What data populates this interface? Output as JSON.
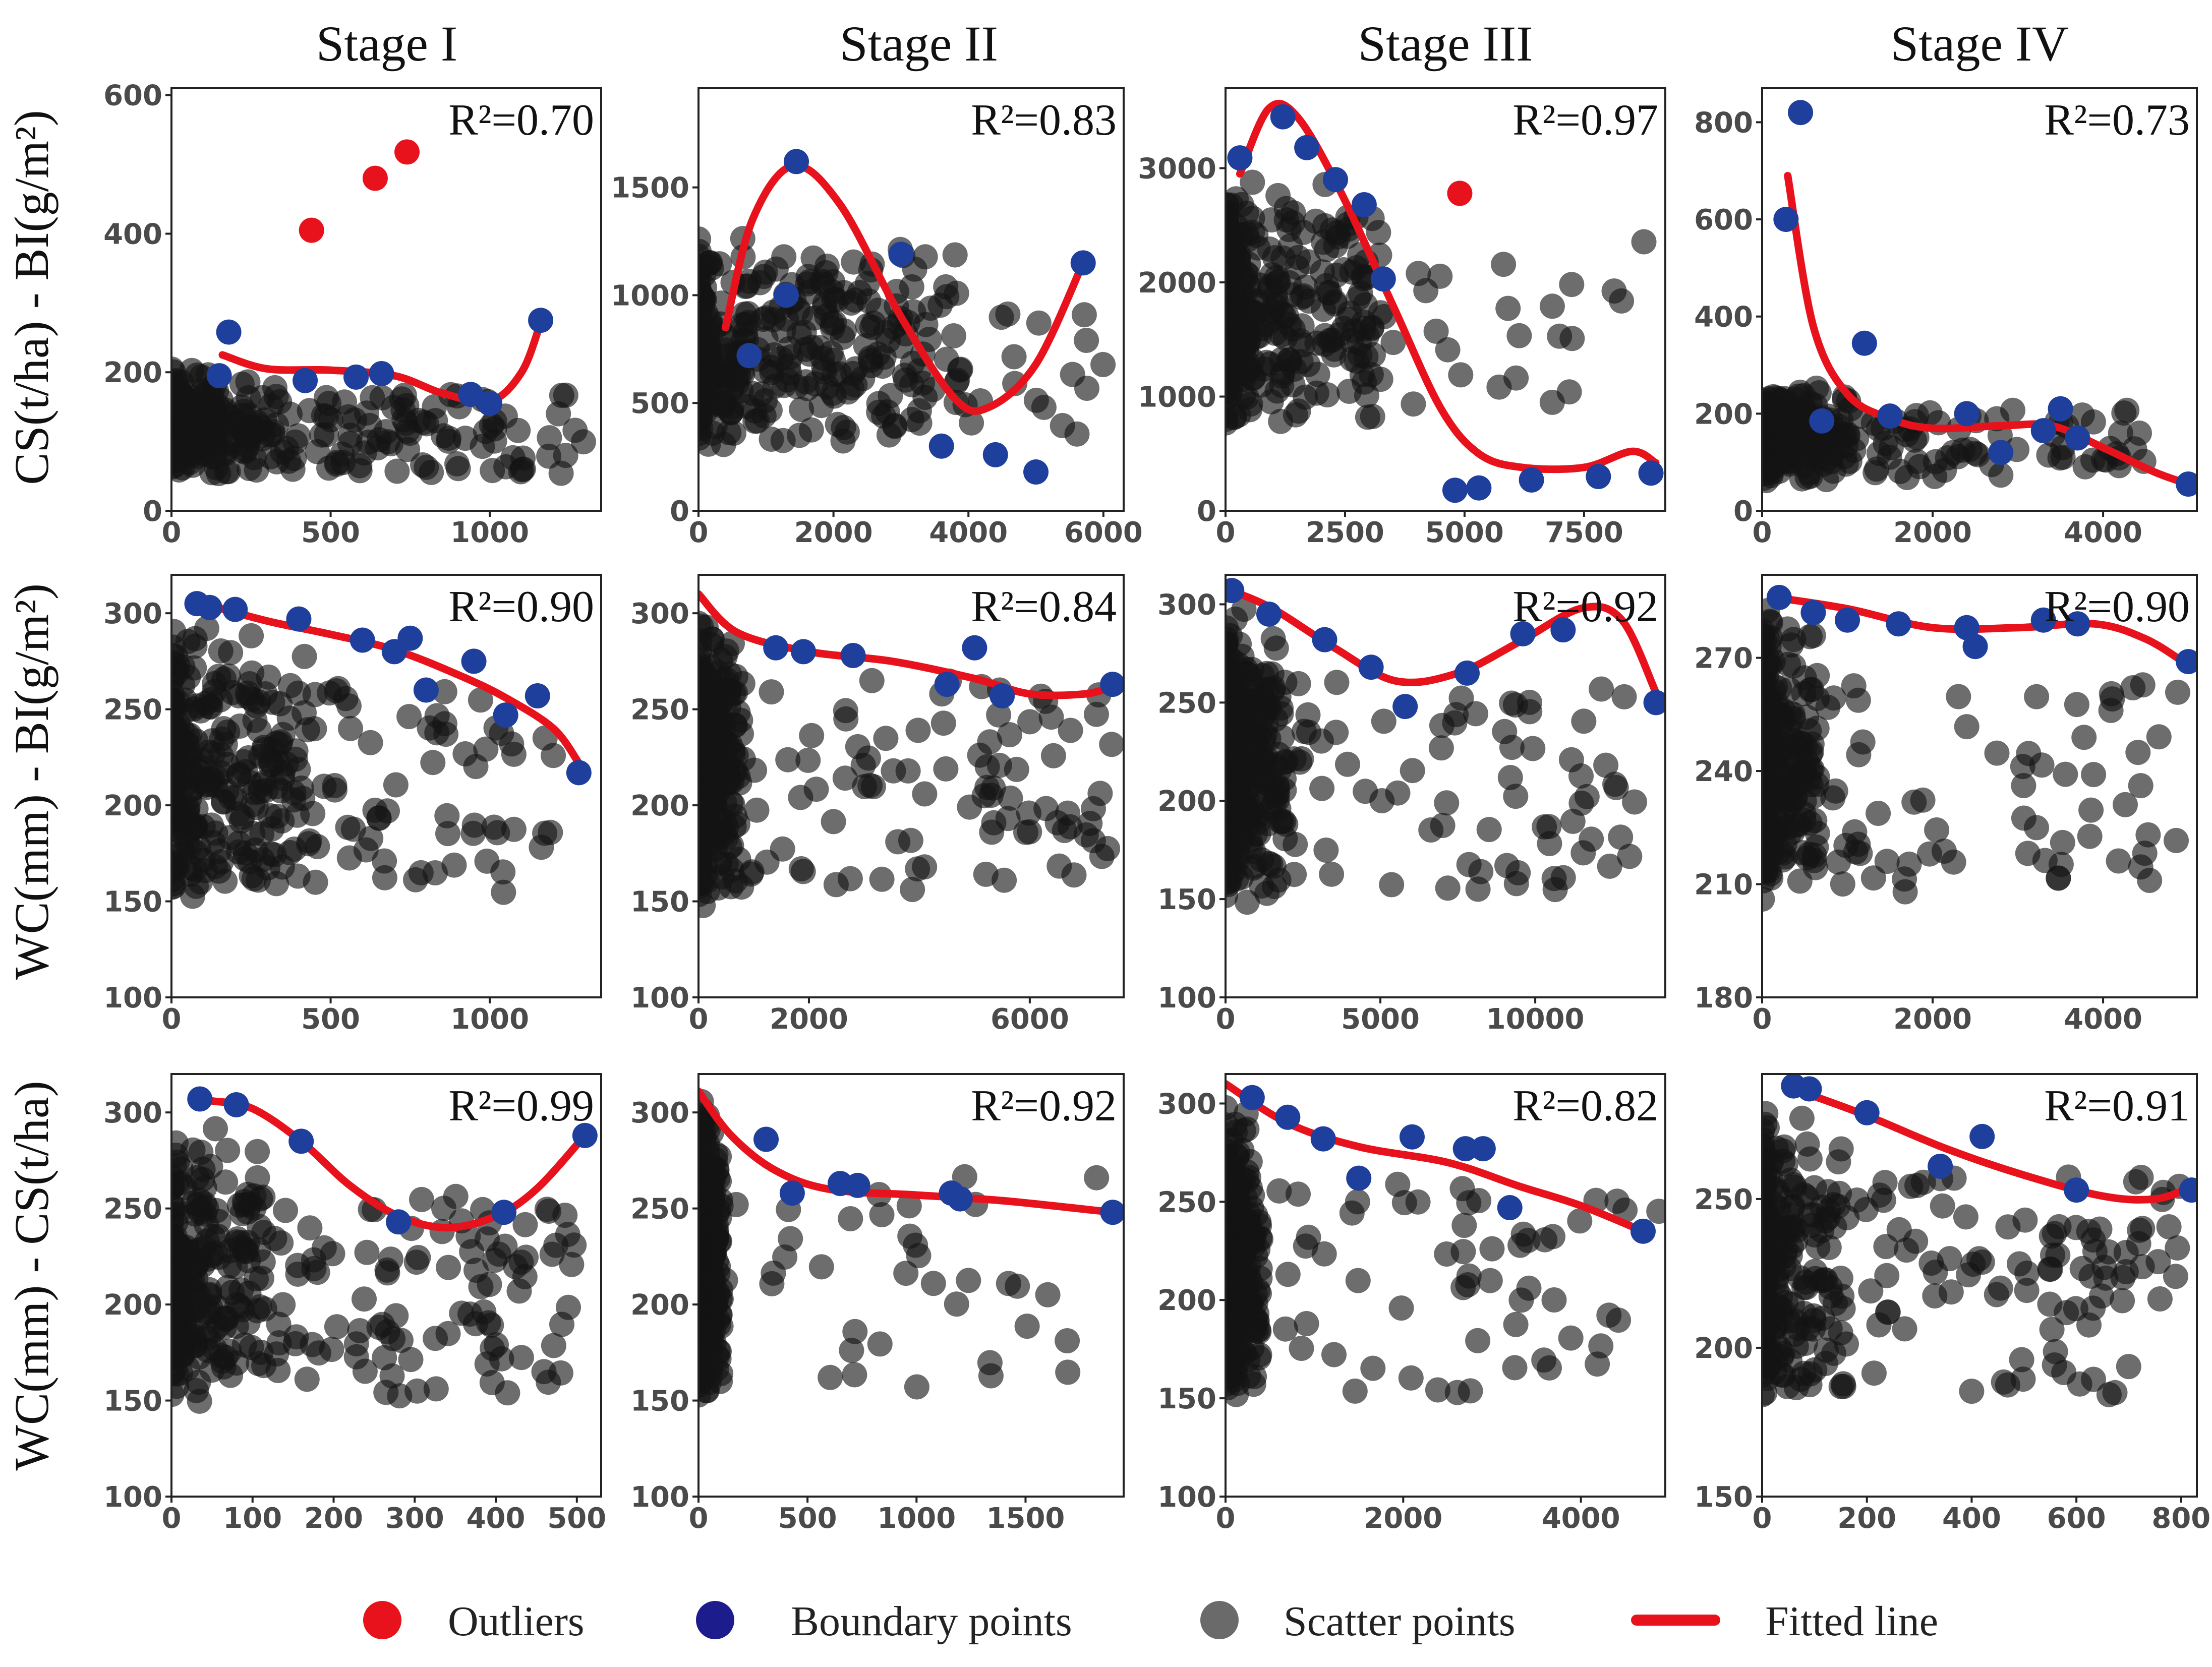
{
  "colors": {
    "outlier": "#e8121c",
    "boundary": "#1f3f9c",
    "scatter": "#141414",
    "fitted": "#e8121c",
    "legend_scatter": "#6a6a6a",
    "legend_boundary": "#1c1c8c"
  },
  "figure": {
    "columns": [
      "Stage I",
      "Stage II",
      "Stage III",
      "Stage IV"
    ],
    "row_labels": [
      "CS(t/ha) - BI(g/m²)",
      "WC(mm)  - BI(g/m²)",
      "WC(mm) - CS(t/ha)"
    ]
  },
  "legend": {
    "outliers": "Outliers",
    "boundary": "Boundary points",
    "scatter": "Scatter points",
    "fitted": "Fitted line"
  },
  "chart_data": [
    {
      "type": "scatter",
      "row": 0,
      "col": 0,
      "r2": "R²=0.70",
      "xlim": [
        0,
        1350
      ],
      "ylim": [
        0,
        610
      ],
      "xticks": [
        0,
        500,
        1000
      ],
      "yticks": [
        0,
        200,
        400,
        600
      ],
      "outliers": [
        [
          440,
          405
        ],
        [
          640,
          480
        ],
        [
          740,
          518
        ]
      ],
      "boundary": [
        [
          150,
          195
        ],
        [
          180,
          258
        ],
        [
          420,
          188
        ],
        [
          580,
          193
        ],
        [
          660,
          198
        ],
        [
          940,
          168
        ],
        [
          1000,
          155
        ],
        [
          1160,
          275
        ]
      ],
      "fit": [
        [
          160,
          225
        ],
        [
          300,
          205
        ],
        [
          500,
          203
        ],
        [
          700,
          195
        ],
        [
          850,
          170
        ],
        [
          1000,
          158
        ],
        [
          1100,
          200
        ],
        [
          1160,
          272
        ]
      ],
      "cloud": {
        "seed": 11,
        "n": 300,
        "x": [
          0,
          1300
        ],
        "y": [
          0,
          210
        ],
        "dense_x": 260,
        "dense_y": 170,
        "skew": 0.6
      }
    },
    {
      "type": "scatter",
      "row": 0,
      "col": 1,
      "r2": "R²=0.83",
      "xlim": [
        0,
        6300
      ],
      "ylim": [
        0,
        1960
      ],
      "xticks": [
        0,
        2000,
        4000,
        6000
      ],
      "yticks": [
        0,
        500,
        1000,
        1500
      ],
      "outliers": [],
      "boundary": [
        [
          750,
          720
        ],
        [
          1300,
          1000
        ],
        [
          1450,
          1620
        ],
        [
          3000,
          1190
        ],
        [
          3600,
          300
        ],
        [
          4400,
          260
        ],
        [
          5000,
          180
        ],
        [
          5700,
          1150
        ]
      ],
      "fit": [
        [
          400,
          850
        ],
        [
          800,
          1350
        ],
        [
          1400,
          1600
        ],
        [
          2100,
          1420
        ],
        [
          3000,
          900
        ],
        [
          3800,
          520
        ],
        [
          4300,
          480
        ],
        [
          5000,
          680
        ],
        [
          5700,
          1150
        ]
      ],
      "cloud": {
        "seed": 23,
        "n": 360,
        "x": [
          0,
          6100
        ],
        "y": [
          0,
          1300
        ],
        "dense_x": 3000,
        "dense_y": 500,
        "skew": 0.8
      }
    },
    {
      "type": "scatter",
      "row": 0,
      "col": 2,
      "r2": "R²=0.97",
      "xlim": [
        0,
        9200
      ],
      "ylim": [
        0,
        3700
      ],
      "xticks": [
        0,
        2500,
        5000,
        7500
      ],
      "yticks": [
        0,
        1000,
        2000,
        3000
      ],
      "outliers": [
        [
          4900,
          2780
        ]
      ],
      "boundary": [
        [
          300,
          3090
        ],
        [
          1200,
          3450
        ],
        [
          1700,
          3180
        ],
        [
          2300,
          2900
        ],
        [
          2900,
          2680
        ],
        [
          3300,
          2030
        ],
        [
          4800,
          180
        ],
        [
          5300,
          200
        ],
        [
          6400,
          270
        ],
        [
          7800,
          300
        ],
        [
          8900,
          330
        ]
      ],
      "fit": [
        [
          300,
          2950
        ],
        [
          900,
          3520
        ],
        [
          1500,
          3450
        ],
        [
          2400,
          2800
        ],
        [
          3500,
          1800
        ],
        [
          4500,
          900
        ],
        [
          5300,
          500
        ],
        [
          6200,
          380
        ],
        [
          7500,
          380
        ],
        [
          8500,
          520
        ],
        [
          9000,
          420
        ]
      ],
      "cloud": {
        "seed": 37,
        "n": 380,
        "x": [
          0,
          8900
        ],
        "y": [
          0,
          3000
        ],
        "dense_x": 2500,
        "dense_y": 1600,
        "skew": 0.9
      }
    },
    {
      "type": "scatter",
      "row": 0,
      "col": 3,
      "r2": "R²=0.73",
      "xlim": [
        0,
        5100
      ],
      "ylim": [
        0,
        870
      ],
      "xticks": [
        0,
        2000,
        4000
      ],
      "yticks": [
        0,
        200,
        400,
        600,
        800
      ],
      "outliers": [],
      "boundary": [
        [
          280,
          600
        ],
        [
          450,
          820
        ],
        [
          700,
          185
        ],
        [
          1200,
          345
        ],
        [
          1500,
          195
        ],
        [
          2400,
          200
        ],
        [
          2800,
          120
        ],
        [
          3300,
          165
        ],
        [
          3500,
          210
        ],
        [
          3700,
          150
        ],
        [
          5000,
          55
        ]
      ],
      "fit": [
        [
          300,
          690
        ],
        [
          600,
          380
        ],
        [
          1000,
          240
        ],
        [
          1500,
          190
        ],
        [
          2000,
          170
        ],
        [
          2800,
          175
        ],
        [
          3400,
          175
        ],
        [
          4000,
          130
        ],
        [
          4600,
          80
        ],
        [
          5000,
          55
        ]
      ],
      "cloud": {
        "seed": 51,
        "n": 300,
        "x": [
          0,
          4500
        ],
        "y": [
          0,
          260
        ],
        "dense_x": 800,
        "dense_y": 200,
        "skew": 0.7
      }
    },
    {
      "type": "scatter",
      "row": 1,
      "col": 0,
      "r2": "R²=0.90",
      "xlim": [
        0,
        1350
      ],
      "ylim": [
        100,
        320
      ],
      "xticks": [
        0,
        500,
        1000
      ],
      "yticks": [
        100,
        150,
        200,
        250,
        300
      ],
      "outliers": [],
      "boundary": [
        [
          80,
          305
        ],
        [
          120,
          303
        ],
        [
          200,
          302
        ],
        [
          400,
          297
        ],
        [
          600,
          286
        ],
        [
          700,
          280
        ],
        [
          750,
          287
        ],
        [
          800,
          260
        ],
        [
          950,
          275
        ],
        [
          1050,
          247
        ],
        [
          1150,
          257
        ],
        [
          1280,
          217
        ]
      ],
      "fit": [
        [
          100,
          305
        ],
        [
          300,
          296
        ],
        [
          500,
          289
        ],
        [
          700,
          281
        ],
        [
          900,
          268
        ],
        [
          1050,
          256
        ],
        [
          1200,
          240
        ],
        [
          1280,
          222
        ]
      ],
      "cloud": {
        "seed": 61,
        "n": 340,
        "x": [
          0,
          1250
        ],
        "y": [
          105,
          300
        ],
        "dense_x": 330,
        "dense_y": 250,
        "skew": 0.75
      }
    },
    {
      "type": "scatter",
      "row": 1,
      "col": 1,
      "r2": "R²=0.84",
      "xlim": [
        0,
        7700
      ],
      "ylim": [
        100,
        320
      ],
      "xticks": [
        0,
        2000,
        6000
      ],
      "yticks": [
        100,
        150,
        200,
        250,
        300
      ],
      "outliers": [],
      "boundary": [
        [
          1400,
          282
        ],
        [
          1900,
          280
        ],
        [
          2800,
          278
        ],
        [
          4500,
          263
        ],
        [
          5000,
          282
        ],
        [
          5500,
          257
        ],
        [
          7500,
          263
        ]
      ],
      "fit": [
        [
          0,
          310
        ],
        [
          700,
          290
        ],
        [
          2000,
          280
        ],
        [
          3500,
          275
        ],
        [
          5000,
          266
        ],
        [
          6000,
          258
        ],
        [
          7000,
          258
        ],
        [
          7500,
          262
        ]
      ],
      "cloud": {
        "seed": 71,
        "n": 420,
        "x": [
          0,
          7500
        ],
        "y": [
          105,
          305
        ],
        "dense_x": 600,
        "dense_y": 230,
        "skew": 0.8
      }
    },
    {
      "type": "scatter",
      "row": 1,
      "col": 2,
      "r2": "R²=0.92",
      "xlim": [
        0,
        14200
      ],
      "ylim": [
        100,
        315
      ],
      "xticks": [
        0,
        5000,
        10000
      ],
      "yticks": [
        100,
        150,
        200,
        250,
        300
      ],
      "outliers": [],
      "boundary": [
        [
          200,
          307
        ],
        [
          1400,
          295
        ],
        [
          3200,
          282
        ],
        [
          4700,
          268
        ],
        [
          5800,
          248
        ],
        [
          7800,
          265
        ],
        [
          9600,
          285
        ],
        [
          10900,
          287
        ],
        [
          13900,
          250
        ]
      ],
      "fit": [
        [
          0,
          308
        ],
        [
          1500,
          298
        ],
        [
          3500,
          278
        ],
        [
          5500,
          261
        ],
        [
          7500,
          265
        ],
        [
          9500,
          281
        ],
        [
          11500,
          298
        ],
        [
          12800,
          292
        ],
        [
          13900,
          255
        ]
      ],
      "cloud": {
        "seed": 83,
        "n": 420,
        "x": [
          0,
          13500
        ],
        "y": [
          105,
          300
        ],
        "dense_x": 1500,
        "dense_y": 240,
        "skew": 0.8
      }
    },
    {
      "type": "scatter",
      "row": 1,
      "col": 3,
      "r2": "R²=0.90",
      "xlim": [
        0,
        5100
      ],
      "ylim": [
        180,
        292
      ],
      "xticks": [
        0,
        2000,
        4000
      ],
      "yticks": [
        180,
        210,
        240,
        270
      ],
      "outliers": [],
      "boundary": [
        [
          200,
          286
        ],
        [
          600,
          282
        ],
        [
          1000,
          280
        ],
        [
          1600,
          279
        ],
        [
          2400,
          278
        ],
        [
          2500,
          273
        ],
        [
          3300,
          280
        ],
        [
          3700,
          279
        ],
        [
          5000,
          269
        ]
      ],
      "fit": [
        [
          150,
          286
        ],
        [
          1000,
          283
        ],
        [
          2000,
          278
        ],
        [
          3000,
          278
        ],
        [
          3900,
          279
        ],
        [
          4500,
          275
        ],
        [
          5000,
          268
        ]
      ],
      "cloud": {
        "seed": 97,
        "n": 320,
        "x": [
          0,
          4900
        ],
        "y": [
          182,
          284
        ],
        "dense_x": 500,
        "dense_y": 255,
        "skew": 0.75
      }
    },
    {
      "type": "scatter",
      "row": 2,
      "col": 0,
      "r2": "R²=0.99",
      "xlim": [
        0,
        530
      ],
      "ylim": [
        100,
        320
      ],
      "xticks": [
        0,
        100,
        200,
        300,
        400,
        500
      ],
      "yticks": [
        100,
        150,
        200,
        250,
        300
      ],
      "outliers": [],
      "boundary": [
        [
          35,
          307
        ],
        [
          80,
          304
        ],
        [
          160,
          285
        ],
        [
          280,
          243
        ],
        [
          410,
          248
        ],
        [
          510,
          288
        ]
      ],
      "fit": [
        [
          50,
          306
        ],
        [
          100,
          302
        ],
        [
          160,
          285
        ],
        [
          220,
          262
        ],
        [
          280,
          246
        ],
        [
          340,
          240
        ],
        [
          400,
          246
        ],
        [
          450,
          260
        ],
        [
          510,
          288
        ]
      ],
      "cloud": {
        "seed": 101,
        "n": 360,
        "x": [
          0,
          500
        ],
        "y": [
          103,
          300
        ],
        "dense_x": 90,
        "dense_y": 255,
        "skew": 0.6
      }
    },
    {
      "type": "scatter",
      "row": 2,
      "col": 1,
      "r2": "R²=0.92",
      "xlim": [
        0,
        1950
      ],
      "ylim": [
        100,
        320
      ],
      "xticks": [
        0,
        500,
        1000,
        1500
      ],
      "yticks": [
        100,
        150,
        200,
        250,
        300
      ],
      "outliers": [],
      "boundary": [
        [
          310,
          286
        ],
        [
          430,
          258
        ],
        [
          650,
          263
        ],
        [
          730,
          262
        ],
        [
          1160,
          258
        ],
        [
          1200,
          255
        ],
        [
          1900,
          248
        ]
      ],
      "fit": [
        [
          0,
          311
        ],
        [
          150,
          288
        ],
        [
          350,
          270
        ],
        [
          600,
          260
        ],
        [
          1000,
          257
        ],
        [
          1400,
          254
        ],
        [
          1900,
          248
        ]
      ],
      "cloud": {
        "seed": 113,
        "n": 420,
        "x": [
          0,
          1850
        ],
        "y": [
          103,
          310
        ],
        "dense_x": 80,
        "dense_y": 220,
        "skew": 0.9
      }
    },
    {
      "type": "scatter",
      "row": 2,
      "col": 2,
      "r2": "R²=0.82",
      "xlim": [
        0,
        4950
      ],
      "ylim": [
        100,
        315
      ],
      "xticks": [
        0,
        2000,
        4000
      ],
      "yticks": [
        100,
        150,
        200,
        250,
        300
      ],
      "outliers": [],
      "boundary": [
        [
          300,
          303
        ],
        [
          700,
          293
        ],
        [
          1100,
          282
        ],
        [
          1500,
          262
        ],
        [
          2100,
          283
        ],
        [
          2700,
          277
        ],
        [
          2900,
          277
        ],
        [
          3200,
          247
        ],
        [
          4700,
          235
        ]
      ],
      "fit": [
        [
          0,
          310
        ],
        [
          700,
          290
        ],
        [
          1500,
          278
        ],
        [
          2500,
          270
        ],
        [
          3300,
          258
        ],
        [
          4000,
          248
        ],
        [
          4700,
          235
        ]
      ],
      "cloud": {
        "seed": 127,
        "n": 380,
        "x": [
          0,
          4900
        ],
        "y": [
          103,
          300
        ],
        "dense_x": 300,
        "dense_y": 230,
        "skew": 0.85
      }
    },
    {
      "type": "scatter",
      "row": 2,
      "col": 3,
      "r2": "R²=0.91",
      "xlim": [
        0,
        830
      ],
      "ylim": [
        150,
        292
      ],
      "xticks": [
        0,
        200,
        400,
        600,
        800
      ],
      "yticks": [
        150,
        200,
        250
      ],
      "outliers": [],
      "boundary": [
        [
          60,
          288
        ],
        [
          90,
          287
        ],
        [
          200,
          279
        ],
        [
          340,
          261
        ],
        [
          420,
          271
        ],
        [
          600,
          253
        ],
        [
          820,
          253
        ]
      ],
      "fit": [
        [
          60,
          287
        ],
        [
          200,
          278
        ],
        [
          350,
          267
        ],
        [
          500,
          258
        ],
        [
          650,
          251
        ],
        [
          750,
          250
        ],
        [
          820,
          254
        ]
      ],
      "cloud": {
        "seed": 139,
        "n": 340,
        "x": [
          0,
          800
        ],
        "y": [
          150,
          285
        ],
        "dense_x": 120,
        "dense_y": 250,
        "skew": 0.6
      }
    }
  ]
}
